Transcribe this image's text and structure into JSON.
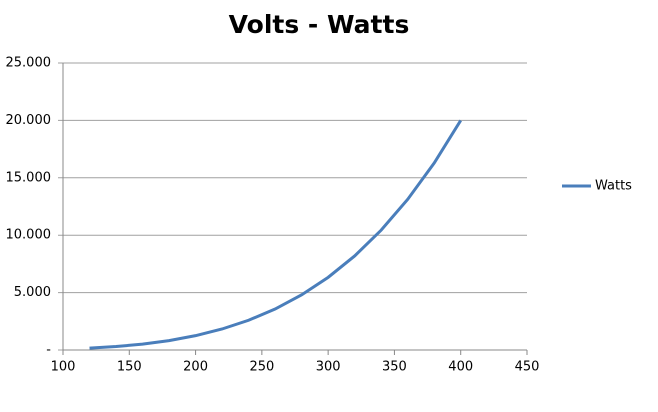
{
  "chart_data": {
    "type": "line",
    "title": "Volts - Watts",
    "x": [
      120,
      140,
      160,
      180,
      200,
      220,
      240,
      260,
      280,
      300,
      320,
      340,
      360,
      380,
      400
    ],
    "series": [
      {
        "name": "Watts",
        "color": "#4a7ebb",
        "values": [
          162,
          300,
          512,
          820,
          1250,
          1830,
          2592,
          3570,
          4802,
          6328,
          8192,
          10440,
          13122,
          16290,
          20000
        ]
      }
    ],
    "xlim": [
      100,
      450
    ],
    "xticks": [
      100,
      150,
      200,
      250,
      300,
      350,
      400,
      450
    ],
    "ylim": [
      0,
      25000
    ],
    "yticks": [
      {
        "value": 0,
        "label": "-"
      },
      {
        "value": 5000,
        "label": "5.000"
      },
      {
        "value": 10000,
        "label": "10.000"
      },
      {
        "value": 15000,
        "label": "15.000"
      },
      {
        "value": 20000,
        "label": "20.000"
      },
      {
        "value": 25000,
        "label": "25.000"
      }
    ],
    "grid": true,
    "legend": "right"
  }
}
